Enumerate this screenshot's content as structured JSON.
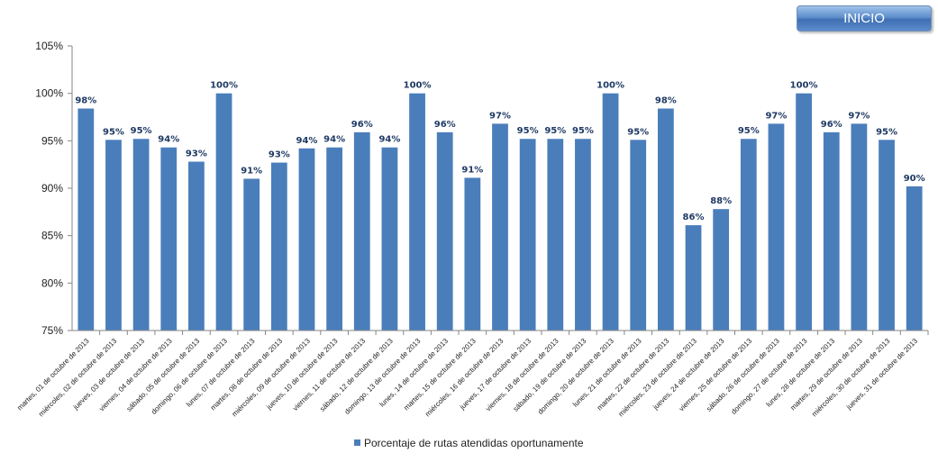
{
  "nav": {
    "inicio_label": "INICIO"
  },
  "colors": {
    "bar": "#4a7ebb",
    "axis": "#868686",
    "label": "#1f3a64"
  },
  "chart_data": {
    "type": "bar",
    "categories": [
      "martes, 01 de octubre de 2013",
      "miércoles, 02 de octubre de 2013",
      "jueves, 03 de octubre de 2013",
      "viernes, 04 de octubre de 2013",
      "sábado, 05 de octubre de 2013",
      "domingo, 06 de octubre de 2013",
      "lunes, 07 de octubre de 2013",
      "martes, 08 de octubre de 2013",
      "miércoles, 09 de octubre de 2013",
      "jueves, 10 de octubre de 2013",
      "viernes, 11 de octubre de 2013",
      "sábado, 12 de octubre de 2013",
      "domingo, 13 de octubre de 2013",
      "lunes, 14 de octubre de 2013",
      "martes, 15 de octubre de 2013",
      "miércoles, 16 de octubre de 2013",
      "jueves, 17 de octubre de 2013",
      "viernes, 18 de octubre de 2013",
      "sábado, 19 de octubre de 2013",
      "domingo, 20 de octubre de 2013",
      "lunes, 21 de octubre de 2013",
      "martes, 22 de octubre de 2013",
      "miércoles, 23 de octubre de 2013",
      "jueves, 24 de octubre de 2013",
      "viernes, 25 de octubre de 2013",
      "sábado, 26 de octubre de 2013",
      "domingo, 27 de octubre de 2013",
      "lunes, 28 de octubre de 2013",
      "martes, 29 de octubre de 2013",
      "miércoles, 30 de octubre de 2013",
      "jueves, 31 de octubre de 2013"
    ],
    "series": [
      {
        "name": "Porcentaje de rutas atendidas oportunamente",
        "values": [
          98.4,
          95.1,
          95.2,
          94.3,
          92.8,
          100,
          91.0,
          92.7,
          94.2,
          94.3,
          95.9,
          94.3,
          100,
          95.9,
          91.1,
          96.8,
          95.2,
          95.2,
          95.2,
          100,
          95.1,
          98.4,
          86.1,
          87.8,
          95.2,
          96.8,
          100,
          95.9,
          96.8,
          95.1,
          90.2
        ],
        "labels": [
          "98%",
          "95%",
          "95%",
          "94%",
          "93%",
          "100%",
          "91%",
          "93%",
          "94%",
          "94%",
          "96%",
          "94%",
          "100%",
          "96%",
          "91%",
          "97%",
          "95%",
          "95%",
          "95%",
          "100%",
          "95%",
          "98%",
          "86%",
          "88%",
          "95%",
          "97%",
          "100%",
          "96%",
          "97%",
          "95%",
          "90%"
        ]
      }
    ],
    "ylim": [
      75,
      105
    ],
    "yticks": [
      "75%",
      "80%",
      "85%",
      "90%",
      "95%",
      "100%",
      "105%"
    ],
    "ytick_values": [
      75,
      80,
      85,
      90,
      95,
      100,
      105
    ],
    "grid": false,
    "legend_position": "bottom-center"
  }
}
